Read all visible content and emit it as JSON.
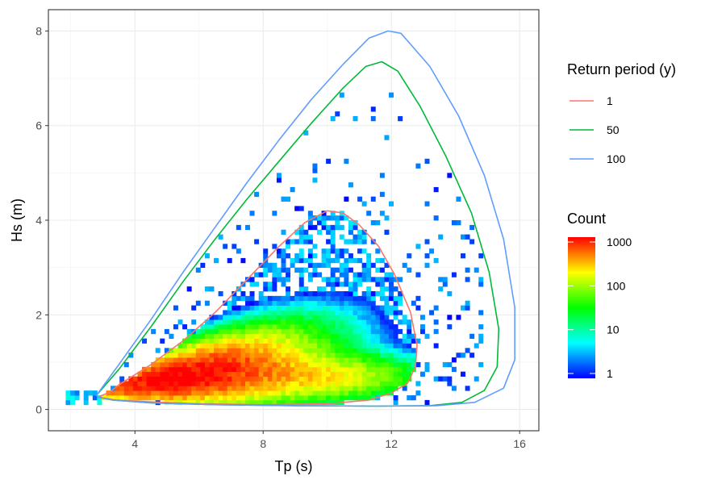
{
  "chart_data": {
    "type": "heatmap",
    "title": "",
    "xlabel": "Tp (s)",
    "ylabel": "Hs (m)",
    "xlim": [
      1.3,
      16.6
    ],
    "ylim": [
      -0.45,
      8.45
    ],
    "x_ticks": [
      4,
      8,
      12,
      16
    ],
    "y_ticks": [
      0,
      2,
      4,
      6,
      8
    ],
    "x_tick_labels": [
      "4",
      "8",
      "12",
      "16"
    ],
    "y_tick_labels": [
      "0",
      "2",
      "4",
      "6",
      "8"
    ],
    "grid": true,
    "contour_legend": {
      "title": "Return period (y)",
      "entries": [
        {
          "label": "1",
          "color": "#F8766D"
        },
        {
          "label": "50",
          "color": "#00BA38"
        },
        {
          "label": "100",
          "color": "#619CFF"
        }
      ]
    },
    "colorbar": {
      "title": "Count",
      "scale": "log10",
      "range": [
        1,
        1000
      ],
      "tick_values": [
        1,
        10,
        100,
        1000
      ],
      "tick_labels": [
        "1",
        "10",
        "100",
        "1000"
      ],
      "colors": [
        "#0000FF",
        "#00FFFF",
        "#00FF00",
        "#FFFF00",
        "#FF0000"
      ]
    },
    "contours": [
      {
        "name": "1",
        "color": "#F8766D",
        "points": [
          [
            2.9,
            0.28
          ],
          [
            3.2,
            0.36
          ],
          [
            3.5,
            0.52
          ],
          [
            4.5,
            0.95
          ],
          [
            5.5,
            1.45
          ],
          [
            6.5,
            2.05
          ],
          [
            7.5,
            2.75
          ],
          [
            8.5,
            3.45
          ],
          [
            9.3,
            3.95
          ],
          [
            10.0,
            4.2
          ],
          [
            10.5,
            4.15
          ],
          [
            11.0,
            3.9
          ],
          [
            11.6,
            3.45
          ],
          [
            12.1,
            2.85
          ],
          [
            12.6,
            2.05
          ],
          [
            12.8,
            1.35
          ],
          [
            12.75,
            0.9
          ],
          [
            12.5,
            0.55
          ],
          [
            12.0,
            0.35
          ],
          [
            11.3,
            0.2
          ],
          [
            10.0,
            0.12
          ],
          [
            8.0,
            0.1
          ],
          [
            6.0,
            0.12
          ],
          [
            4.5,
            0.16
          ],
          [
            3.4,
            0.2
          ],
          [
            2.95,
            0.25
          ],
          [
            2.9,
            0.28
          ]
        ]
      },
      {
        "name": "50",
        "color": "#00BA38",
        "points": [
          [
            2.8,
            0.3
          ],
          [
            3.5,
            0.85
          ],
          [
            4.5,
            1.75
          ],
          [
            5.5,
            2.7
          ],
          [
            6.5,
            3.6
          ],
          [
            7.5,
            4.45
          ],
          [
            8.5,
            5.25
          ],
          [
            9.5,
            6.05
          ],
          [
            10.5,
            6.8
          ],
          [
            11.2,
            7.25
          ],
          [
            11.7,
            7.35
          ],
          [
            12.2,
            7.15
          ],
          [
            12.9,
            6.4
          ],
          [
            13.7,
            5.35
          ],
          [
            14.5,
            4.15
          ],
          [
            15.05,
            2.9
          ],
          [
            15.35,
            1.7
          ],
          [
            15.3,
            0.9
          ],
          [
            14.9,
            0.4
          ],
          [
            14.2,
            0.15
          ],
          [
            13.2,
            0.08
          ],
          [
            11.5,
            0.07
          ],
          [
            9.0,
            0.08
          ],
          [
            6.5,
            0.1
          ],
          [
            4.5,
            0.14
          ],
          [
            3.3,
            0.2
          ],
          [
            2.85,
            0.26
          ],
          [
            2.8,
            0.3
          ]
        ]
      },
      {
        "name": "100",
        "color": "#619CFF",
        "points": [
          [
            2.8,
            0.3
          ],
          [
            3.5,
            0.95
          ],
          [
            4.5,
            1.9
          ],
          [
            5.5,
            2.9
          ],
          [
            6.5,
            3.85
          ],
          [
            7.5,
            4.8
          ],
          [
            8.5,
            5.7
          ],
          [
            9.5,
            6.55
          ],
          [
            10.5,
            7.3
          ],
          [
            11.3,
            7.85
          ],
          [
            11.9,
            8.0
          ],
          [
            12.3,
            7.95
          ],
          [
            13.2,
            7.25
          ],
          [
            14.1,
            6.2
          ],
          [
            14.9,
            4.95
          ],
          [
            15.5,
            3.6
          ],
          [
            15.85,
            2.15
          ],
          [
            15.85,
            1.05
          ],
          [
            15.5,
            0.45
          ],
          [
            14.6,
            0.15
          ],
          [
            13.4,
            0.08
          ],
          [
            11.5,
            0.07
          ],
          [
            9.0,
            0.08
          ],
          [
            6.5,
            0.1
          ],
          [
            4.5,
            0.14
          ],
          [
            3.3,
            0.2
          ],
          [
            2.85,
            0.26
          ],
          [
            2.8,
            0.3
          ]
        ]
      }
    ],
    "bins": {
      "x_bin_width": 0.14,
      "y_bin_height": 0.1,
      "density_model": "estimated joint Hs–Tp histogram, peak near Tp=5.5 s, Hs=0.7 m"
    }
  }
}
